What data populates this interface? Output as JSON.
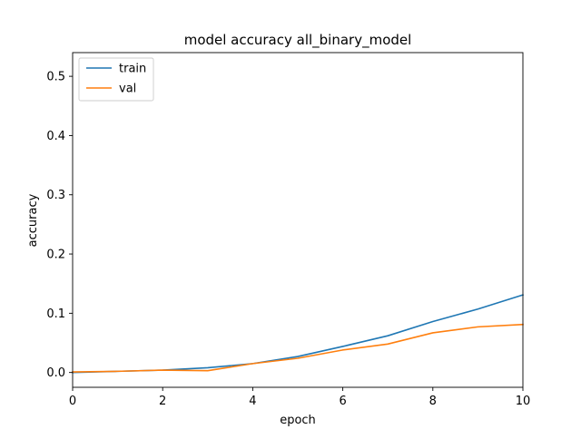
{
  "chart_data": {
    "type": "line",
    "title": "model accuracy all_binary_model",
    "xlabel": "epoch",
    "ylabel": "accuracy",
    "xlim": [
      0,
      10
    ],
    "ylim": [
      -0.025,
      0.54
    ],
    "xticks": [
      0,
      2,
      4,
      6,
      8,
      10
    ],
    "yticks": [
      0.0,
      0.1,
      0.2,
      0.3,
      0.4,
      0.5
    ],
    "xtick_labels": [
      "0",
      "2",
      "4",
      "6",
      "8",
      "10"
    ],
    "ytick_labels": [
      "0.0",
      "0.1",
      "0.2",
      "0.3",
      "0.4",
      "0.5"
    ],
    "grid": false,
    "legend_position": "top-left",
    "x": [
      0,
      1,
      2,
      3,
      4,
      5,
      6,
      7,
      8,
      9,
      10
    ],
    "series": [
      {
        "name": "train",
        "color": "#1f77b4",
        "values": [
          0.0,
          0.002,
          0.004,
          0.008,
          0.015,
          0.027,
          0.044,
          0.062,
          0.086,
          0.107,
          0.131
        ]
      },
      {
        "name": "val",
        "color": "#ff7f0e",
        "values": [
          0.001,
          0.002,
          0.004,
          0.003,
          0.015,
          0.024,
          0.038,
          0.048,
          0.067,
          0.077,
          0.081
        ]
      }
    ]
  }
}
